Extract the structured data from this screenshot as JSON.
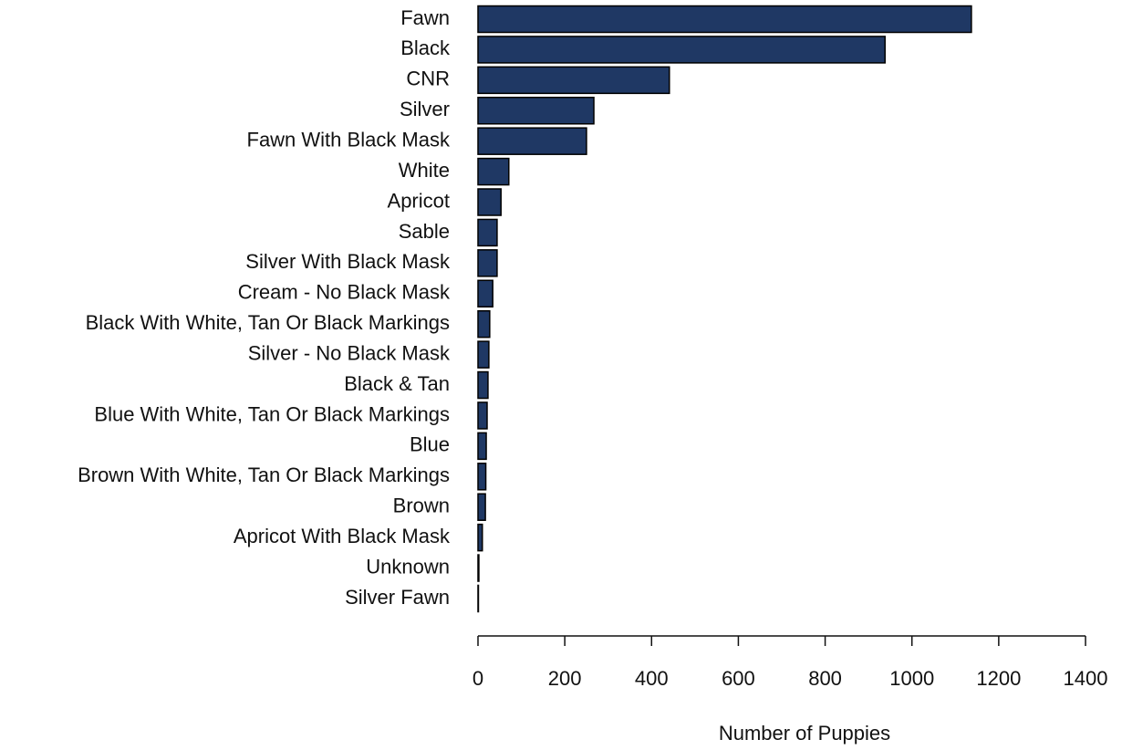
{
  "chart_data": {
    "type": "bar",
    "orientation": "horizontal",
    "x_label": "Number of Puppies",
    "categories": [
      "Fawn",
      "Black",
      "CNR",
      "Silver",
      "Fawn With Black Mask",
      "White",
      "Apricot",
      "Sable",
      "Silver With Black Mask",
      "Cream - No Black Mask",
      "Black With White, Tan Or Black Markings",
      "Silver - No Black Mask",
      "Black & Tan",
      "Blue With White, Tan Or Black Markings",
      "Blue",
      "Brown With White, Tan Or Black Markings",
      "Brown",
      "Apricot With Black Mask",
      "Unknown",
      "Silver Fawn"
    ],
    "values": [
      1137,
      938,
      441,
      267,
      250,
      71,
      53,
      44,
      44,
      34,
      27,
      25,
      23,
      21,
      19,
      18,
      17,
      10,
      2,
      1
    ],
    "color": "#1f3864",
    "xlim": [
      0,
      1400
    ],
    "xticks": [
      0,
      200,
      400,
      600,
      800,
      1000,
      1200,
      1400
    ]
  }
}
